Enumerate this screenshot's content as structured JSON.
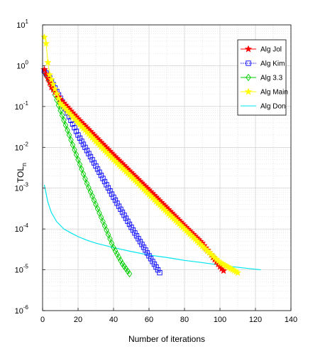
{
  "chart_data": {
    "type": "line",
    "title": "",
    "xlabel": "Number of iterations",
    "ylabel": {
      "main": "TOL",
      "sub": "n"
    },
    "xlim": [
      0,
      140
    ],
    "ylim": [
      1e-06,
      10
    ],
    "yscale": "log",
    "grid": true,
    "legend_position": "top-right",
    "x_ticks": [
      {
        "value": 0,
        "label": "0"
      },
      {
        "value": 20,
        "label": "20"
      },
      {
        "value": 40,
        "label": "40"
      },
      {
        "value": 60,
        "label": "60"
      },
      {
        "value": 80,
        "label": "80"
      },
      {
        "value": 100,
        "label": "100"
      },
      {
        "value": 120,
        "label": "120"
      },
      {
        "value": 140,
        "label": "140"
      }
    ],
    "y_ticks": [
      {
        "value": 1e-06,
        "base": "10",
        "exp": "-6"
      },
      {
        "value": 1e-05,
        "base": "10",
        "exp": "-5"
      },
      {
        "value": 0.0001,
        "base": "10",
        "exp": "-4"
      },
      {
        "value": 0.001,
        "base": "10",
        "exp": "-3"
      },
      {
        "value": 0.01,
        "base": "10",
        "exp": "-2"
      },
      {
        "value": 0.1,
        "base": "10",
        "exp": "-1"
      },
      {
        "value": 1,
        "base": "10",
        "exp": "0"
      },
      {
        "value": 10,
        "base": "10",
        "exp": "1"
      }
    ],
    "series": [
      {
        "name": "Alg Jol",
        "color": "#ff0000",
        "marker": "star",
        "line": "solid",
        "x": [
          1,
          5,
          10,
          20,
          30,
          40,
          50,
          60,
          70,
          80,
          90,
          100,
          102
        ],
        "y": [
          0.8,
          0.3,
          0.15,
          0.05,
          0.018,
          0.0065,
          0.0024,
          0.0009,
          0.00033,
          0.00012,
          4.5e-05,
          1.2e-05,
          9.5e-06
        ]
      },
      {
        "name": "Alg Kim",
        "color": "#0000ff",
        "marker": "square",
        "line": "dotted",
        "x": [
          1,
          4,
          10,
          20,
          30,
          40,
          50,
          60,
          66
        ],
        "y": [
          0.75,
          0.5,
          0.16,
          0.02,
          0.0035,
          0.0006,
          0.00011,
          2.2e-05,
          8.5e-06
        ]
      },
      {
        "name": "Alg 3.3",
        "color": "#00cc00",
        "marker": "diamond",
        "line": "solid",
        "x": [
          1,
          5,
          10,
          15,
          20,
          25,
          30,
          35,
          40,
          45,
          49
        ],
        "y": [
          0.7,
          0.35,
          0.08,
          0.02,
          0.005,
          0.0013,
          0.0004,
          0.00012,
          3.5e-05,
          1.4e-05,
          8e-06
        ]
      },
      {
        "name": "Alg Main",
        "color": "#ffff00",
        "marker": "star",
        "line": "solid",
        "x": [
          1,
          2,
          3,
          4,
          10,
          20,
          30,
          40,
          50,
          60,
          70,
          80,
          90,
          100,
          110
        ],
        "y": [
          5,
          3.5,
          1.2,
          0.6,
          0.12,
          0.04,
          0.014,
          0.005,
          0.0019,
          0.0007,
          0.00026,
          0.0001,
          3.8e-05,
          1.5e-05,
          8.5e-06
        ]
      },
      {
        "name": "Alg Don",
        "color": "#00e5ee",
        "marker": "none",
        "line": "solid",
        "x": [
          1,
          3,
          5,
          8,
          12,
          16,
          20,
          25,
          30,
          40,
          50,
          60,
          70,
          80,
          90,
          100,
          110,
          123
        ],
        "y": [
          0.0012,
          0.00045,
          0.00025,
          0.00015,
          0.0001,
          8e-05,
          6.5e-05,
          5.3e-05,
          4.5e-05,
          3.5e-05,
          2.8e-05,
          2.3e-05,
          2e-05,
          1.7e-05,
          1.5e-05,
          1.3e-05,
          1.15e-05,
          1e-05
        ]
      }
    ]
  }
}
